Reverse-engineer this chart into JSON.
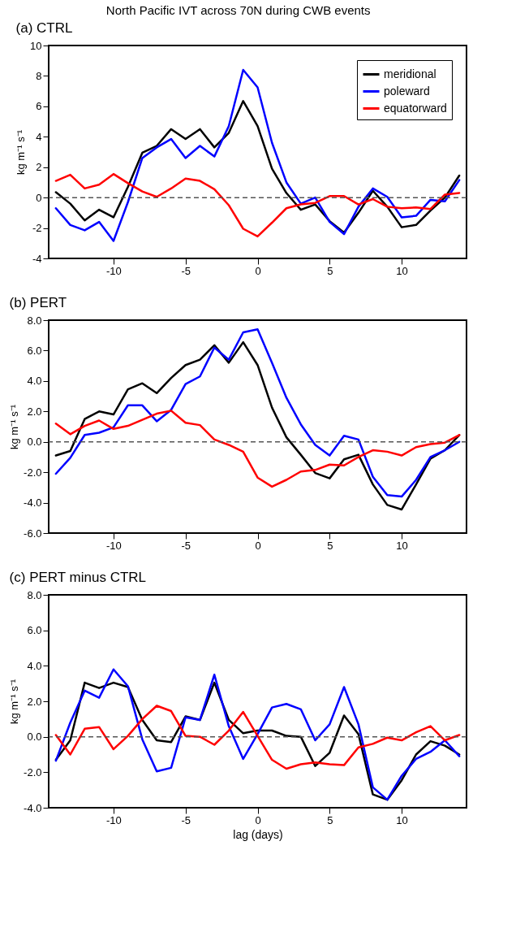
{
  "chart_data": [
    {
      "type": "line",
      "title": "North Pacific IVT across 70N during CWB events",
      "subtitle": "(a) CTRL",
      "ylabel": "kg m⁻¹ s⁻¹",
      "x": [
        -14,
        -13,
        -12,
        -11,
        -10,
        -9,
        -8,
        -7,
        -6,
        -5,
        -4,
        -3,
        -2,
        -1,
        0,
        1,
        2,
        3,
        4,
        5,
        6,
        7,
        8,
        9,
        10,
        11,
        12,
        13,
        14
      ],
      "series": [
        {
          "name": "meridional",
          "color": "#000000",
          "values": [
            0.35,
            -0.4,
            -1.5,
            -0.8,
            -1.3,
            0.7,
            2.95,
            3.4,
            4.5,
            3.85,
            4.5,
            3.3,
            4.25,
            6.35,
            4.7,
            1.9,
            0.3,
            -0.8,
            -0.45,
            -1.55,
            -2.3,
            -1.0,
            0.45,
            -0.6,
            -1.95,
            -1.8,
            -0.85,
            0.0,
            1.45
          ]
        },
        {
          "name": "poleward",
          "color": "#0000ff",
          "values": [
            -0.7,
            -1.8,
            -2.15,
            -1.6,
            -2.85,
            -0.3,
            2.6,
            3.3,
            3.85,
            2.6,
            3.4,
            2.7,
            4.7,
            8.4,
            7.25,
            3.6,
            1.0,
            -0.4,
            0.0,
            -1.6,
            -2.4,
            -0.6,
            0.6,
            0.05,
            -1.3,
            -1.2,
            -0.15,
            -0.25,
            1.15
          ]
        },
        {
          "name": "equatorward",
          "color": "#ff0000",
          "values": [
            1.1,
            1.5,
            0.6,
            0.85,
            1.55,
            0.95,
            0.4,
            0.05,
            0.6,
            1.25,
            1.1,
            0.55,
            -0.5,
            -2.05,
            -2.55,
            -1.65,
            -0.7,
            -0.45,
            -0.35,
            0.1,
            0.1,
            -0.45,
            -0.1,
            -0.6,
            -0.7,
            -0.65,
            -0.75,
            0.2,
            0.3
          ]
        }
      ],
      "xlim": [
        -14.5,
        14.5
      ],
      "xticks": [
        -10,
        -5,
        0,
        5,
        10
      ],
      "ylim": [
        -4,
        10
      ],
      "yticks": [
        -4,
        -2,
        0,
        2,
        4,
        6,
        8,
        10
      ],
      "ref_lines": [
        {
          "axis": "y",
          "value": 0,
          "color": "#555555",
          "line_style": "dashed"
        }
      ],
      "grid": false,
      "legend": "top right",
      "line_style": "solid",
      "marker": "none"
    },
    {
      "type": "line",
      "title": "(b) PERT",
      "ylabel": "kg m⁻¹ s⁻¹",
      "x": [
        -14,
        -13,
        -12,
        -11,
        -10,
        -9,
        -8,
        -7,
        -6,
        -5,
        -4,
        -3,
        -2,
        -1,
        0,
        1,
        2,
        3,
        4,
        5,
        6,
        7,
        8,
        9,
        10,
        11,
        12,
        13,
        14
      ],
      "series": [
        {
          "color": "#000000",
          "values": [
            -0.9,
            -0.6,
            1.5,
            2.0,
            1.8,
            3.45,
            3.85,
            3.2,
            4.2,
            5.05,
            5.4,
            6.35,
            5.2,
            6.55,
            5.05,
            2.25,
            0.3,
            -0.85,
            -2.05,
            -2.4,
            -1.15,
            -0.85,
            -2.8,
            -4.15,
            -4.45,
            -2.8,
            -1.1,
            -0.55,
            0.45
          ]
        },
        {
          "color": "#0000ff",
          "values": [
            -2.1,
            -1.05,
            0.45,
            0.6,
            0.95,
            2.4,
            2.4,
            1.35,
            2.1,
            3.8,
            4.3,
            6.2,
            5.4,
            7.2,
            7.4,
            5.2,
            2.9,
            1.15,
            -0.2,
            -0.9,
            0.4,
            0.15,
            -2.3,
            -3.5,
            -3.6,
            -2.5,
            -1.0,
            -0.55,
            0.0
          ]
        },
        {
          "color": "#ff0000",
          "values": [
            1.2,
            0.5,
            1.05,
            1.4,
            0.85,
            1.05,
            1.45,
            1.85,
            2.05,
            1.25,
            1.1,
            0.15,
            -0.2,
            -0.65,
            -2.35,
            -2.95,
            -2.5,
            -1.95,
            -1.85,
            -1.5,
            -1.55,
            -1.0,
            -0.55,
            -0.65,
            -0.9,
            -0.35,
            -0.15,
            -0.05,
            0.45
          ]
        }
      ],
      "xlim": [
        -14.5,
        14.5
      ],
      "xticks": [
        -10,
        -5,
        0,
        5,
        10
      ],
      "ylim": [
        -6,
        8
      ],
      "yticks": [
        {
          "value": -6,
          "label": "-6.0"
        },
        {
          "value": -4,
          "label": "-4.0"
        },
        {
          "value": -2,
          "label": "-2.0"
        },
        {
          "value": 0,
          "label": "0.0"
        },
        {
          "value": 2,
          "label": "2.0"
        },
        {
          "value": 4,
          "label": "4.0"
        },
        {
          "value": 6,
          "label": "6.0"
        },
        {
          "value": 8,
          "label": "8.0"
        }
      ],
      "ref_lines": [
        {
          "axis": "y",
          "value": 0,
          "color": "#555555",
          "line_style": "dashed"
        }
      ],
      "grid": false,
      "legend": false,
      "line_style": "solid",
      "marker": "none"
    },
    {
      "type": "line",
      "title": "(c) PERT minus CTRL",
      "ylabel": "kg m⁻¹ s⁻¹",
      "xlabel": "lag (days)",
      "x": [
        -14,
        -13,
        -12,
        -11,
        -10,
        -9,
        -8,
        -7,
        -6,
        -5,
        -4,
        -3,
        -2,
        -1,
        0,
        1,
        2,
        3,
        4,
        5,
        6,
        7,
        8,
        9,
        10,
        11,
        12,
        13,
        14
      ],
      "series": [
        {
          "color": "#000000",
          "values": [
            -1.3,
            -0.2,
            3.05,
            2.75,
            3.05,
            2.8,
            0.95,
            -0.2,
            -0.3,
            1.15,
            0.95,
            3.05,
            0.95,
            0.2,
            0.35,
            0.35,
            0.05,
            0.0,
            -1.65,
            -0.9,
            1.2,
            0.15,
            -3.25,
            -3.55,
            -2.45,
            -1.0,
            -0.25,
            -0.5,
            -1.0
          ]
        },
        {
          "color": "#0000ff",
          "values": [
            -1.35,
            0.8,
            2.6,
            2.2,
            3.8,
            2.85,
            -0.15,
            -1.95,
            -1.75,
            1.1,
            0.95,
            3.5,
            0.6,
            -1.25,
            0.15,
            1.65,
            1.85,
            1.55,
            -0.2,
            0.7,
            2.8,
            0.7,
            -2.85,
            -3.55,
            -2.2,
            -1.25,
            -0.85,
            -0.2,
            -1.1
          ]
        },
        {
          "color": "#ff0000",
          "values": [
            0.1,
            -1.0,
            0.45,
            0.55,
            -0.7,
            0.05,
            1.0,
            1.75,
            1.45,
            0.05,
            0.0,
            -0.45,
            0.35,
            1.4,
            0.05,
            -1.3,
            -1.8,
            -1.55,
            -1.45,
            -1.55,
            -1.6,
            -0.6,
            -0.4,
            -0.05,
            -0.2,
            0.25,
            0.6,
            -0.2,
            0.1
          ]
        }
      ],
      "xlim": [
        -14.5,
        14.5
      ],
      "xticks": [
        -10,
        -5,
        0,
        5,
        10
      ],
      "ylim": [
        -4,
        8
      ],
      "yticks": [
        {
          "value": -4,
          "label": "-4.0"
        },
        {
          "value": -2,
          "label": "-2.0"
        },
        {
          "value": 0,
          "label": "0.0"
        },
        {
          "value": 2,
          "label": "2.0"
        },
        {
          "value": 4,
          "label": "4.0"
        },
        {
          "value": 6,
          "label": "6.0"
        },
        {
          "value": 8,
          "label": "8.0"
        }
      ],
      "ref_lines": [
        {
          "axis": "y",
          "value": 0,
          "color": "#555555",
          "line_style": "dashed"
        }
      ],
      "grid": false,
      "legend": false,
      "line_style": "solid",
      "marker": "none"
    }
  ]
}
